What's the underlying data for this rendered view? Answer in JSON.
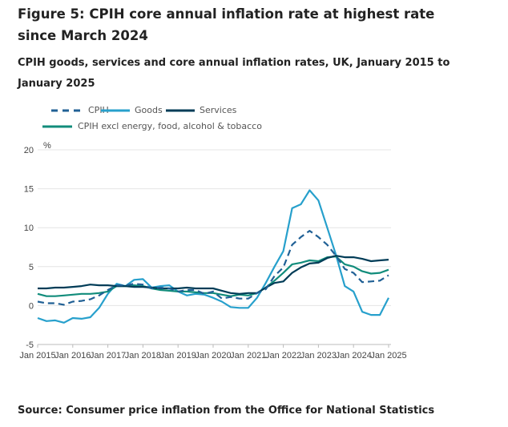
{
  "title": "Figure 5: CPIH core annual inflation rate at highest rate since March 2024",
  "subtitle": "CPIH goods, services and core annual inflation rates, UK, January 2015 to January 2025",
  "source": "Source: Consumer price inflation from the Office for National Statistics",
  "chart_data": {
    "type": "line",
    "ylabel": "%",
    "ylim": [
      -5,
      20
    ],
    "yticks": [
      "20",
      "15",
      "10",
      "5",
      "0",
      "-5"
    ],
    "xticks": [
      "Jan 2015",
      "Jan 2016",
      "Jan 2017",
      "Jan 2018",
      "Jan 2019",
      "Jan 2020",
      "Jan 2021",
      "Jan 2022",
      "Jan 2023",
      "Jan 2024",
      "Jan 2025"
    ],
    "x_start": "Jan 2015",
    "x_step_months": 3,
    "grid": true,
    "legend_position": "top-left",
    "series": [
      {
        "name": "CPIH",
        "color": "#206095",
        "dash": true,
        "values": [
          0.5,
          0.3,
          0.3,
          0.1,
          0.5,
          0.6,
          0.8,
          1.3,
          2.0,
          2.6,
          2.6,
          2.8,
          2.7,
          2.2,
          2.3,
          2.2,
          1.8,
          2.0,
          2.0,
          1.5,
          1.8,
          0.9,
          1.1,
          0.9,
          0.9,
          1.6,
          2.1,
          3.8,
          4.9,
          7.8,
          8.8,
          9.6,
          8.8,
          7.8,
          6.4,
          4.7,
          4.2,
          3.0,
          3.1,
          3.2,
          3.9
        ]
      },
      {
        "name": "Goods",
        "color": "#27a0cc",
        "dash": false,
        "values": [
          -1.6,
          -2.0,
          -1.9,
          -2.2,
          -1.6,
          -1.7,
          -1.5,
          -0.3,
          1.5,
          2.8,
          2.5,
          3.3,
          3.4,
          2.3,
          2.5,
          2.6,
          1.8,
          1.3,
          1.5,
          1.4,
          1.0,
          0.5,
          -0.2,
          -0.3,
          -0.3,
          1.0,
          2.9,
          5.0,
          7.0,
          12.5,
          13.0,
          14.8,
          13.5,
          10.0,
          6.5,
          2.5,
          1.8,
          -0.8,
          -1.2,
          -1.2,
          1.0
        ]
      },
      {
        "name": "Services",
        "color": "#003c57",
        "dash": false,
        "values": [
          2.2,
          2.2,
          2.3,
          2.3,
          2.4,
          2.5,
          2.7,
          2.6,
          2.6,
          2.5,
          2.5,
          2.4,
          2.4,
          2.3,
          2.2,
          2.2,
          2.2,
          2.3,
          2.2,
          2.2,
          2.2,
          1.9,
          1.6,
          1.5,
          1.6,
          1.6,
          2.3,
          2.9,
          3.1,
          4.2,
          4.9,
          5.4,
          5.5,
          6.1,
          6.4,
          6.2,
          6.2,
          6.0,
          5.7,
          5.8,
          5.9
        ]
      },
      {
        "name": "CPIH excl energy, food, alcohol & tobacco",
        "color": "#118c7b",
        "dash": false,
        "values": [
          1.5,
          1.2,
          1.2,
          1.3,
          1.4,
          1.5,
          1.5,
          1.6,
          1.8,
          2.5,
          2.5,
          2.6,
          2.5,
          2.2,
          2.0,
          1.9,
          1.8,
          1.8,
          1.7,
          1.6,
          1.6,
          1.4,
          1.2,
          1.4,
          1.3,
          1.6,
          2.3,
          3.2,
          4.2,
          5.3,
          5.5,
          5.8,
          5.7,
          6.2,
          6.3,
          5.3,
          5.0,
          4.4,
          4.1,
          4.2,
          4.6
        ]
      }
    ]
  }
}
